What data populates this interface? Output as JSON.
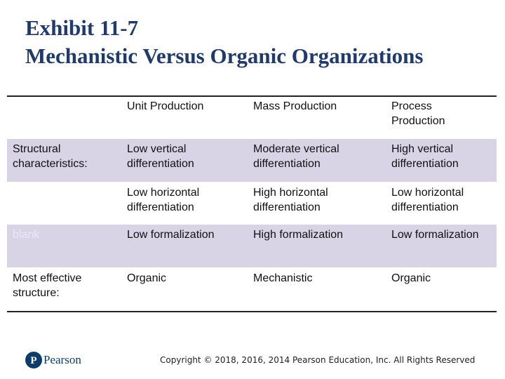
{
  "header": {
    "title": [
      "Exhibit 11-7",
      "Mechanistic Versus Organic Organizations"
    ]
  },
  "table": {
    "columns": [
      "Unit Production",
      "Mass Production",
      "Process Production"
    ],
    "rows": [
      [
        "Structural characteristics:",
        "Low vertical differentiation",
        "Moderate vertical differentiation",
        "High vertical differentiation"
      ],
      [
        null,
        "Low horizontal differentiation",
        "High horizontal differentiation",
        "Low horizontal differentiation"
      ],
      [
        "blank",
        "Low formalization",
        "High formalization",
        "Low formalization"
      ],
      [
        "Most effective structure:",
        "Organic",
        "Mechanistic",
        "Organic"
      ]
    ]
  },
  "footer": {
    "logo": "Pearson",
    "copyright": "Copyright © 2018, 2016, 2014 Pearson Education, Inc. All Rights Reserved"
  }
}
